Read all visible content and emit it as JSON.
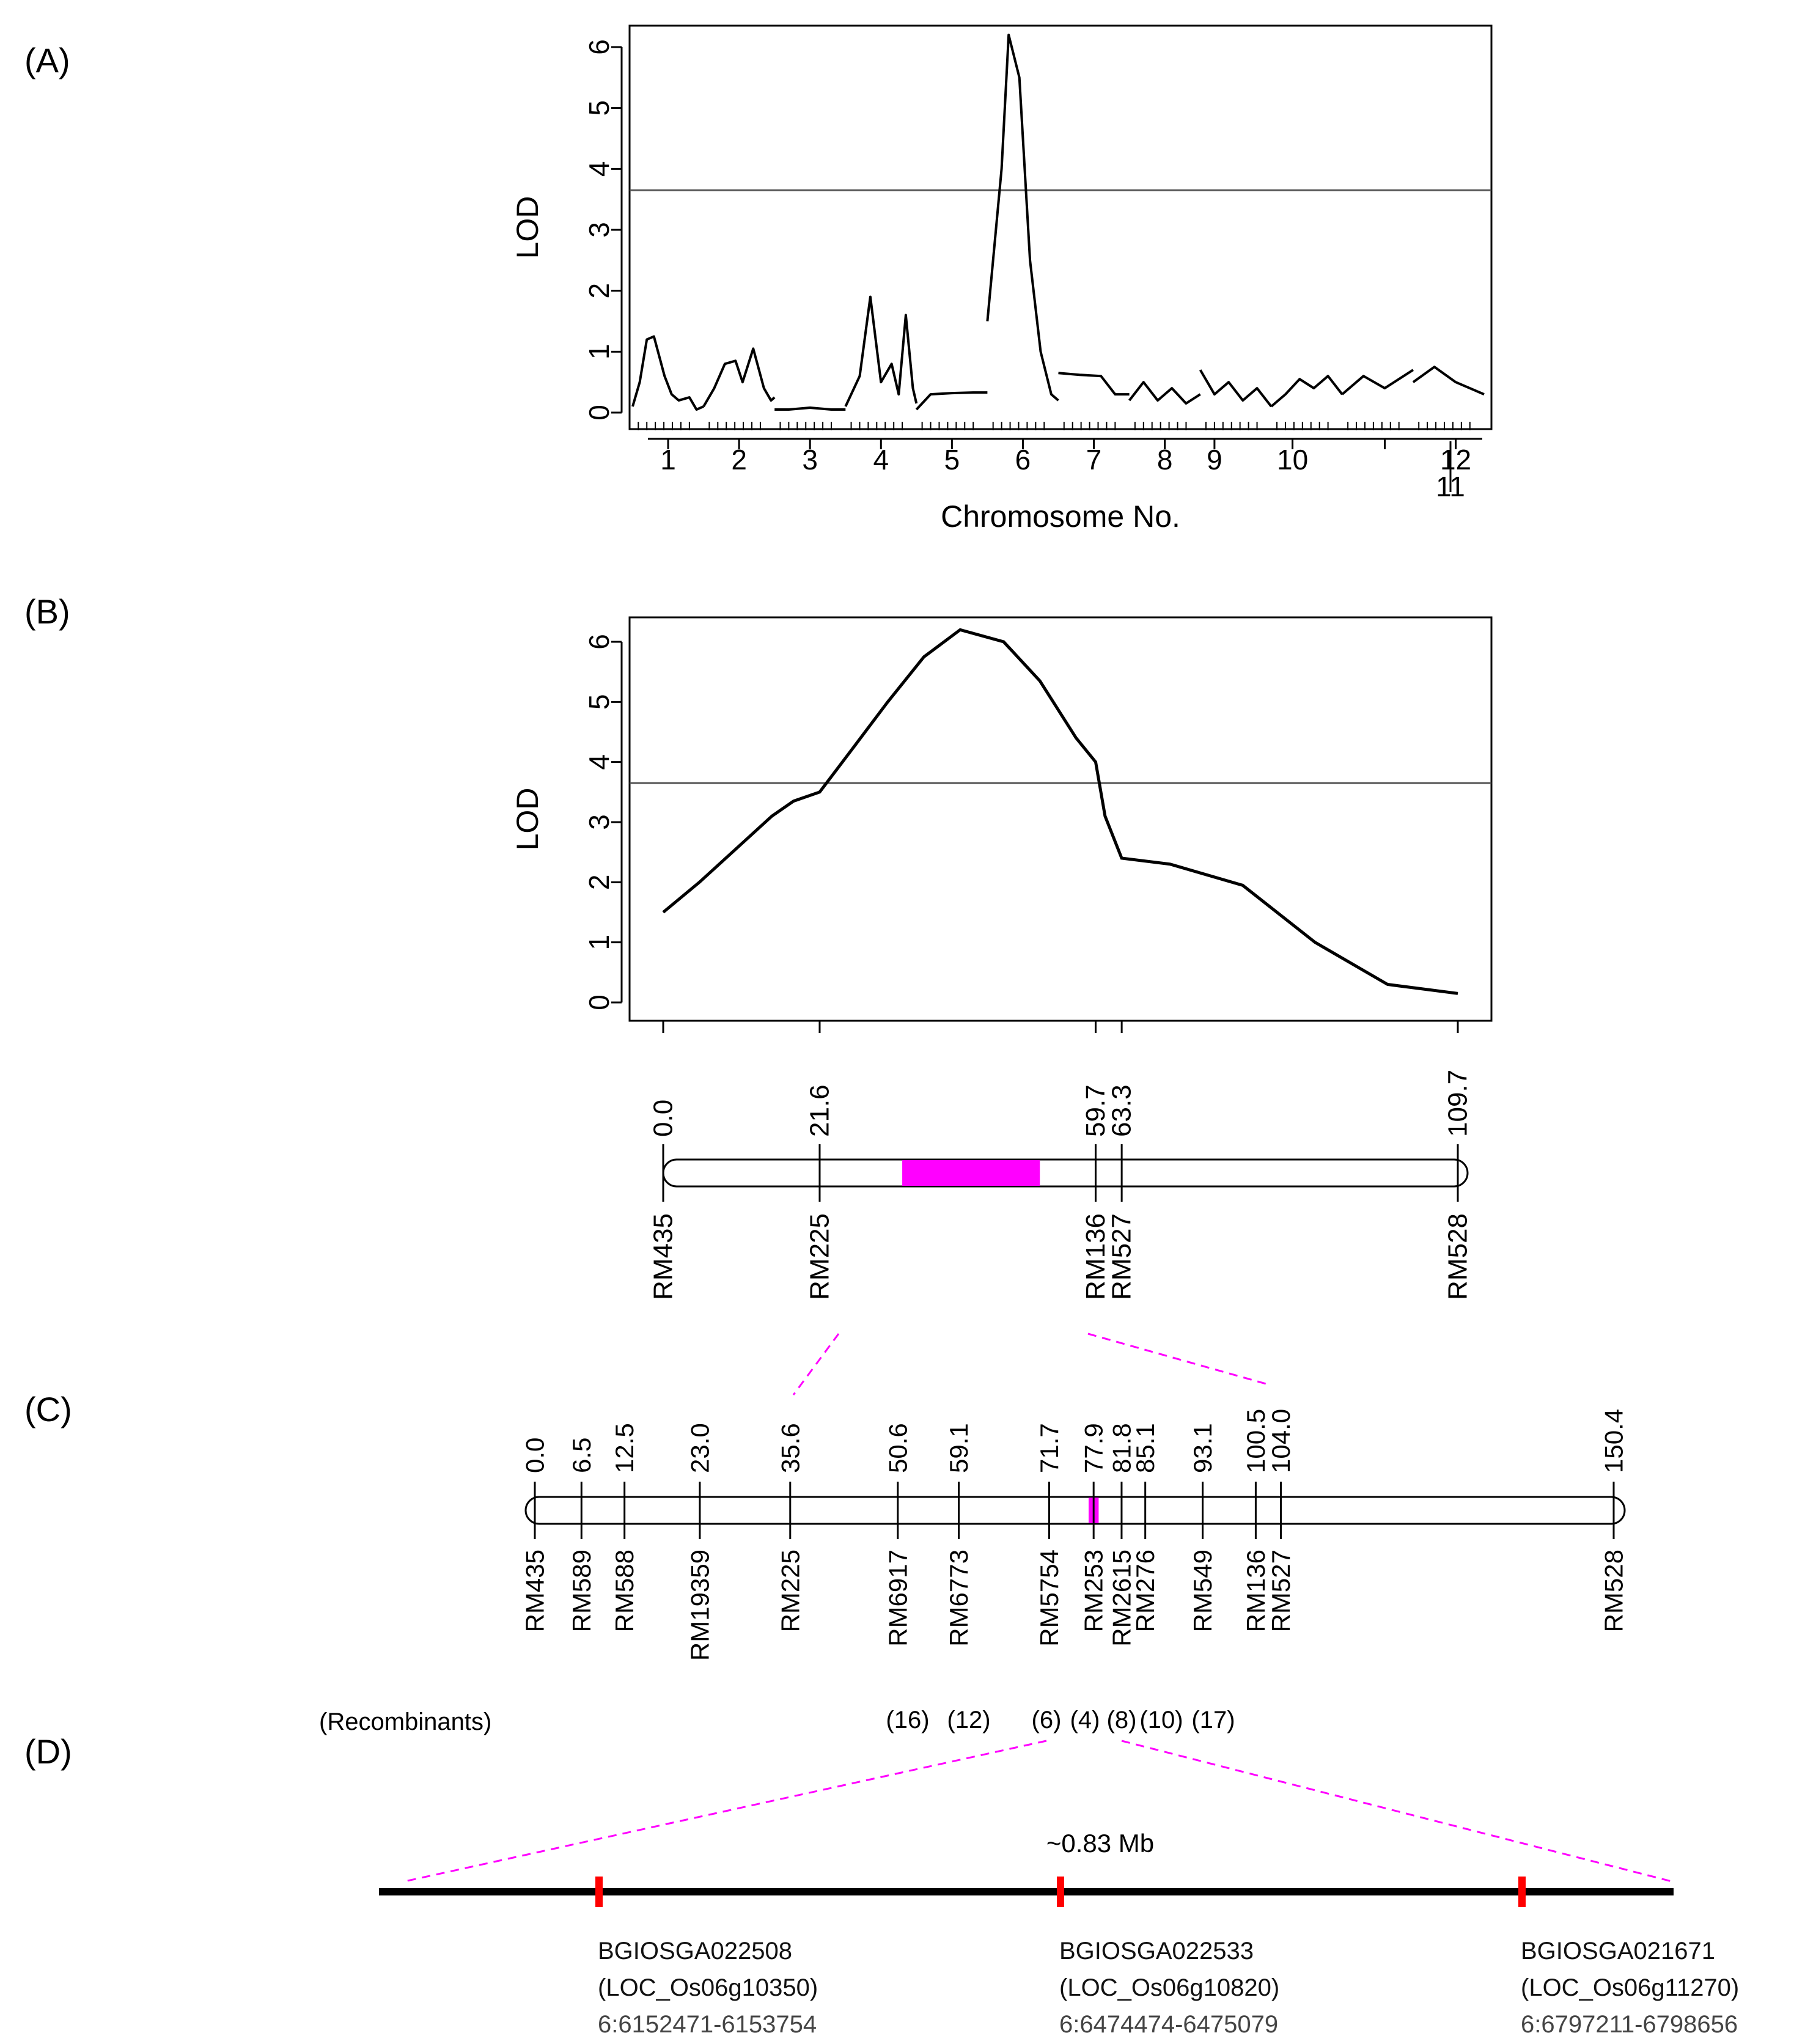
{
  "panels": {
    "a_label": "(A)",
    "b_label": "(B)",
    "c_label": "(C)",
    "d_label": "(D)",
    "recombinants_label": "(Recombinants)"
  },
  "colors": {
    "magenta": "#ff00ff",
    "red": "#ff0000",
    "axis": "#000000",
    "threshold": "#555555"
  },
  "chart_data": [
    {
      "id": "A",
      "type": "line",
      "title": "",
      "xlabel": "Chromosome No.",
      "ylabel": "LOD",
      "ylim": [
        0,
        6.5
      ],
      "yticks": [
        "0",
        "1",
        "2",
        "3",
        "4",
        "5",
        "6"
      ],
      "threshold": 3.65,
      "chromosomes": [
        "1",
        "2",
        "3",
        "4",
        "5",
        "6",
        "7",
        "8",
        "9",
        "10",
        "11",
        "12"
      ],
      "series": [
        {
          "name": "chr1",
          "x": [
            0,
            0.1,
            0.2,
            0.3,
            0.45,
            0.55,
            0.65,
            0.8,
            0.9,
            1.0
          ],
          "y": [
            0.1,
            0.5,
            1.2,
            1.25,
            0.6,
            0.3,
            0.2,
            0.25,
            0.05,
            0.1
          ]
        },
        {
          "name": "chr2",
          "x": [
            1.0,
            1.15,
            1.3,
            1.45,
            1.55,
            1.7,
            1.85,
            1.95,
            2.0
          ],
          "y": [
            0.1,
            0.4,
            0.8,
            0.85,
            0.5,
            1.05,
            0.4,
            0.2,
            0.25
          ]
        },
        {
          "name": "chr3",
          "x": [
            2.0,
            2.2,
            2.5,
            2.8,
            3.0
          ],
          "y": [
            0.05,
            0.05,
            0.08,
            0.05,
            0.05
          ]
        },
        {
          "name": "chr4",
          "x": [
            3.0,
            3.2,
            3.35,
            3.5,
            3.65,
            3.75,
            3.85,
            3.95,
            4.0
          ],
          "y": [
            0.1,
            0.6,
            1.9,
            0.5,
            0.8,
            0.3,
            1.6,
            0.4,
            0.15
          ]
        },
        {
          "name": "chr5",
          "x": [
            4.0,
            4.2,
            4.5,
            4.8,
            5.0
          ],
          "y": [
            0.05,
            0.3,
            0.32,
            0.33,
            0.33
          ]
        },
        {
          "name": "chr6",
          "x": [
            5.0,
            5.2,
            5.3,
            5.45,
            5.6,
            5.75,
            5.9,
            6.0
          ],
          "y": [
            1.5,
            4.0,
            6.2,
            5.5,
            2.5,
            1.0,
            0.3,
            0.2
          ]
        },
        {
          "name": "chr7",
          "x": [
            6.0,
            6.3,
            6.6,
            6.8,
            7.0
          ],
          "y": [
            0.65,
            0.62,
            0.6,
            0.3,
            0.3
          ]
        },
        {
          "name": "chr8",
          "x": [
            7.0,
            7.2,
            7.4,
            7.6,
            7.8,
            8.0
          ],
          "y": [
            0.2,
            0.5,
            0.2,
            0.4,
            0.15,
            0.3
          ]
        },
        {
          "name": "chr9",
          "x": [
            8.0,
            8.2,
            8.4,
            8.6,
            8.8,
            9.0
          ],
          "y": [
            0.7,
            0.3,
            0.5,
            0.2,
            0.4,
            0.1
          ]
        },
        {
          "name": "chr10",
          "x": [
            9.0,
            9.2,
            9.4,
            9.6,
            9.8,
            10.0
          ],
          "y": [
            0.1,
            0.3,
            0.55,
            0.4,
            0.6,
            0.3
          ]
        },
        {
          "name": "chr11",
          "x": [
            10.0,
            10.3,
            10.6,
            11.0
          ],
          "y": [
            0.3,
            0.6,
            0.4,
            0.7
          ]
        },
        {
          "name": "chr12",
          "x": [
            11.0,
            11.3,
            11.6,
            12.0
          ],
          "y": [
            0.5,
            0.75,
            0.5,
            0.3
          ]
        }
      ]
    },
    {
      "id": "B",
      "type": "line",
      "xlabel": "",
      "ylabel": "LOD",
      "ylim": [
        0,
        6.5
      ],
      "xlim": [
        0,
        109.7
      ],
      "yticks": [
        "0",
        "1",
        "2",
        "3",
        "4",
        "5",
        "6"
      ],
      "threshold": 3.65,
      "series": [
        {
          "name": "chr6 LOD",
          "x": [
            0,
            5,
            10,
            15,
            18,
            21.6,
            26,
            31,
            36,
            41,
            47,
            52,
            57,
            59.7,
            61,
            63.3,
            70,
            80,
            90,
            100,
            109.7
          ],
          "y": [
            1.5,
            2.0,
            2.55,
            3.1,
            3.35,
            3.5,
            4.2,
            5.0,
            5.75,
            6.2,
            6.0,
            5.35,
            4.4,
            4.0,
            3.1,
            2.4,
            2.3,
            1.95,
            1.0,
            0.3,
            0.15
          ]
        }
      ]
    }
  ],
  "map_b": {
    "positions": [
      "0.0",
      "21.6",
      "59.7",
      "63.3",
      "109.7"
    ],
    "markers": [
      "RM435",
      "RM225",
      "RM136",
      "RM527",
      "RM528"
    ],
    "interval_cm": [
      33,
      52
    ]
  },
  "map_c": {
    "positions": [
      "0.0",
      "6.5",
      "12.5",
      "23.0",
      "35.6",
      "50.6",
      "59.1",
      "71.7",
      "77.9",
      "81.8",
      "85.1",
      "93.1",
      "100.5",
      "104.0",
      "150.4"
    ],
    "markers": [
      "RM435",
      "RM589",
      "RM588",
      "RM19359",
      "RM225",
      "RM6917",
      "RM6773",
      "RM5754",
      "RM253",
      "RM2615",
      "RM276",
      "RM549",
      "RM136",
      "RM527",
      "RM528"
    ],
    "recombinants": [
      "(16)",
      "(12)",
      "(6)",
      "(4)",
      "(8)",
      "(10)",
      "(17)"
    ],
    "interval_cm": [
      77.2,
      78.6
    ]
  },
  "region_d": {
    "size_label": "~0.83 Mb",
    "genes": [
      {
        "id": "BGIOSGA022508",
        "loc": "(LOC_Os06g10350)",
        "coords": "6:6152471-6153754"
      },
      {
        "id": "BGIOSGA022533",
        "loc": "(LOC_Os06g10820)",
        "coords": "6:6474474-6475079"
      },
      {
        "id": "BGIOSGA021671",
        "loc": "(LOC_Os06g11270)",
        "coords": "6:6797211-6798656"
      }
    ]
  }
}
